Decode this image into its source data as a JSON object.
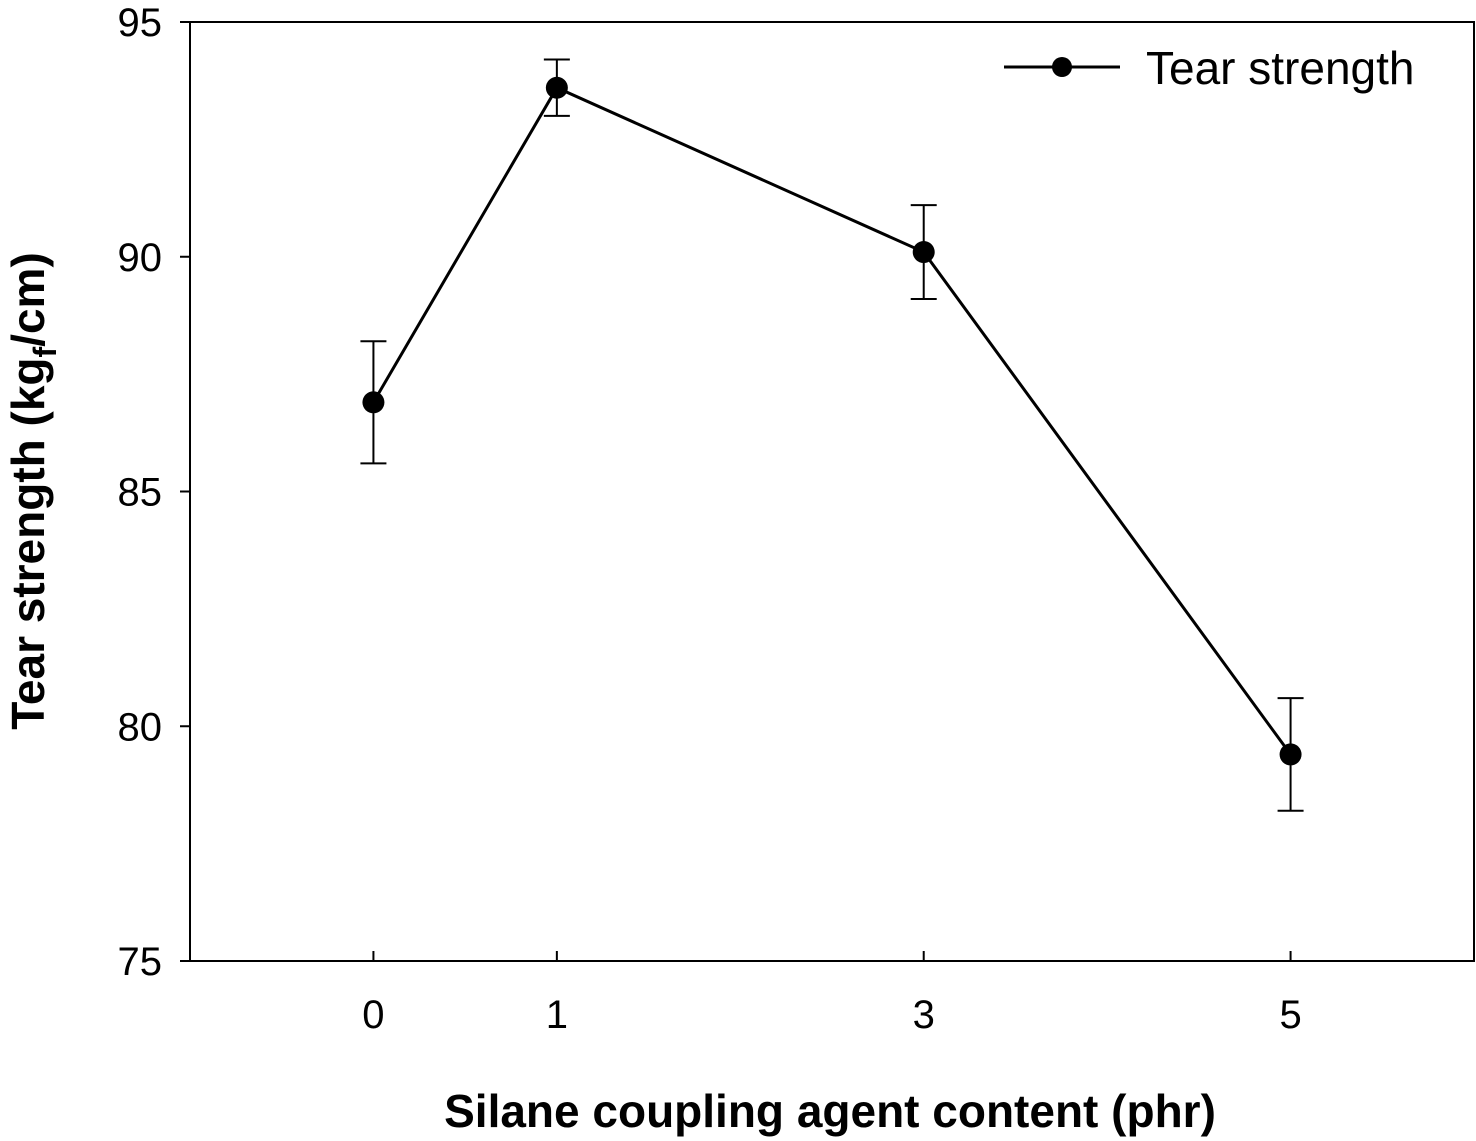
{
  "chart_data": {
    "type": "line",
    "xlabel": "Silane coupling agent content (phr)",
    "ylabel": {
      "main": "Tear strength (kg",
      "subscript": "f",
      "suffix": "/cm)"
    },
    "xlim": [
      -1,
      6
    ],
    "ylim": [
      75,
      95
    ],
    "xticks": [
      0,
      1,
      3,
      5
    ],
    "xtick_labels": [
      "0",
      "1",
      "3",
      "5"
    ],
    "yticks": [
      75,
      80,
      85,
      90,
      95
    ],
    "ytick_labels": [
      "75",
      "80",
      "85",
      "90",
      "95"
    ],
    "grid": false,
    "legend_position": "top-right",
    "series": [
      {
        "name": "Tear strength",
        "color": "#000000",
        "x": [
          0,
          1,
          3,
          5
        ],
        "y": [
          86.9,
          93.6,
          90.1,
          79.4
        ],
        "error": [
          1.3,
          0.6,
          1.0,
          1.2
        ]
      }
    ]
  }
}
